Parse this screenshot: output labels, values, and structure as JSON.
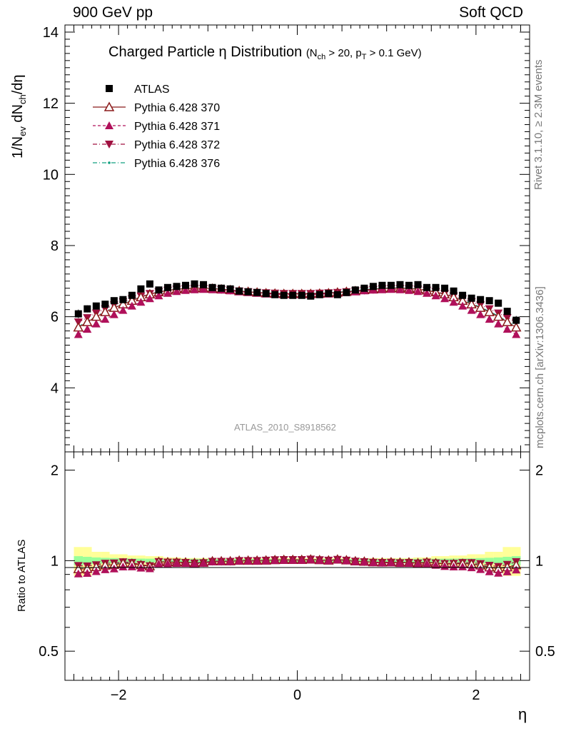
{
  "header": {
    "left": "900 GeV pp",
    "right": "Soft QCD"
  },
  "side_labels": {
    "rivet": "Rivet 3.1.10, ≥ 2.3M events",
    "mcplots": "mcplots.cern.ch [arXiv:1306.3436]"
  },
  "watermark": "ATLAS_2010_S8918562",
  "colors": {
    "atlas": "#000000",
    "p370": "#8b1a1a",
    "p371": "#b0105a",
    "p372": "#a01040",
    "p376": "#10a080",
    "band_yellow": "#ffff99",
    "band_green": "#99ff99"
  },
  "chart_data": {
    "type": "scatter",
    "title": "Charged Particle η Distribution",
    "title_cuts": "(N_ch > 20, p_T > 0.1 GeV)",
    "xlabel": "η",
    "ylabel": "1/N_ev dN_ch/dη",
    "ratio_ylabel": "Ratio to ATLAS",
    "xlim": [
      -2.6,
      2.6
    ],
    "ylim": [
      2.2,
      14.2
    ],
    "ratio_ylim": [
      0.4,
      2.3
    ],
    "x_ticks": [
      "−2",
      "0",
      "2"
    ],
    "y_ticks": [
      "4",
      "6",
      "8",
      "10",
      "12",
      "14"
    ],
    "ratio_ticks": [
      "0.5",
      "1",
      "2"
    ],
    "legend_position": "top-left",
    "x": [
      -2.45,
      -2.35,
      -2.25,
      -2.15,
      -2.05,
      -1.95,
      -1.85,
      -1.75,
      -1.65,
      -1.55,
      -1.45,
      -1.35,
      -1.25,
      -1.15,
      -1.05,
      -0.95,
      -0.85,
      -0.75,
      -0.65,
      -0.55,
      -0.45,
      -0.35,
      -0.25,
      -0.15,
      -0.05,
      0.05,
      0.15,
      0.25,
      0.35,
      0.45,
      0.55,
      0.65,
      0.75,
      0.85,
      0.95,
      1.05,
      1.15,
      1.25,
      1.35,
      1.45,
      1.55,
      1.65,
      1.75,
      1.85,
      1.95,
      2.05,
      2.15,
      2.25,
      2.35,
      2.45
    ],
    "series": [
      {
        "name": "ATLAS",
        "values": [
          6.08,
          6.22,
          6.3,
          6.35,
          6.45,
          6.48,
          6.6,
          6.78,
          6.92,
          6.75,
          6.82,
          6.85,
          6.88,
          6.92,
          6.9,
          6.82,
          6.8,
          6.78,
          6.72,
          6.7,
          6.68,
          6.65,
          6.62,
          6.6,
          6.6,
          6.6,
          6.58,
          6.62,
          6.65,
          6.62,
          6.68,
          6.75,
          6.8,
          6.85,
          6.88,
          6.88,
          6.9,
          6.88,
          6.9,
          6.82,
          6.82,
          6.8,
          6.72,
          6.6,
          6.52,
          6.48,
          6.45,
          6.38,
          6.15,
          5.9
        ],
        "errors": [
          0.12,
          0.1,
          0.09,
          0.08,
          0.07,
          0.06,
          0.06,
          0.05,
          0.05,
          0.05,
          0.04,
          0.04,
          0.04,
          0.04,
          0.04,
          0.04,
          0.04,
          0.04,
          0.04,
          0.04,
          0.04,
          0.04,
          0.04,
          0.04,
          0.04,
          0.04,
          0.04,
          0.04,
          0.04,
          0.04,
          0.04,
          0.04,
          0.04,
          0.04,
          0.04,
          0.04,
          0.04,
          0.04,
          0.04,
          0.04,
          0.05,
          0.05,
          0.05,
          0.06,
          0.06,
          0.07,
          0.08,
          0.09,
          0.1,
          0.12
        ],
        "band_green": [
          0.035,
          0.03,
          0.025,
          0.022,
          0.02,
          0.018,
          0.017,
          0.016,
          0.015,
          0.015,
          0.014,
          0.014,
          0.014,
          0.014,
          0.014,
          0.014,
          0.013,
          0.013,
          0.013,
          0.013,
          0.013,
          0.013,
          0.013,
          0.013,
          0.013,
          0.013,
          0.013,
          0.013,
          0.013,
          0.013,
          0.013,
          0.013,
          0.013,
          0.014,
          0.014,
          0.014,
          0.014,
          0.014,
          0.014,
          0.014,
          0.015,
          0.015,
          0.016,
          0.017,
          0.018,
          0.02,
          0.022,
          0.025,
          0.03,
          0.035
        ],
        "band_yellow": [
          0.11,
          0.11,
          0.07,
          0.07,
          0.05,
          0.05,
          0.04,
          0.04,
          0.035,
          0.035,
          0.025,
          0.025,
          0.02,
          0.02,
          0.02,
          0.02,
          0.02,
          0.02,
          0.02,
          0.02,
          0.02,
          0.02,
          0.02,
          0.02,
          0.02,
          0.02,
          0.02,
          0.02,
          0.02,
          0.02,
          0.02,
          0.02,
          0.02,
          0.02,
          0.02,
          0.02,
          0.02,
          0.02,
          0.025,
          0.025,
          0.035,
          0.035,
          0.04,
          0.04,
          0.05,
          0.05,
          0.07,
          0.07,
          0.11,
          0.11
        ]
      },
      {
        "name": "Pythia 6.428 370",
        "values": [
          5.7,
          5.85,
          6.0,
          6.13,
          6.25,
          6.35,
          6.45,
          6.55,
          6.63,
          6.69,
          6.74,
          6.77,
          6.79,
          6.8,
          6.8,
          6.79,
          6.77,
          6.75,
          6.72,
          6.7,
          6.68,
          6.66,
          6.65,
          6.64,
          6.64,
          6.64,
          6.64,
          6.65,
          6.66,
          6.68,
          6.7,
          6.72,
          6.75,
          6.77,
          6.79,
          6.8,
          6.8,
          6.79,
          6.77,
          6.74,
          6.69,
          6.63,
          6.55,
          6.45,
          6.35,
          6.25,
          6.13,
          6.0,
          5.85,
          5.7
        ]
      },
      {
        "name": "Pythia 6.428 371",
        "values": [
          5.5,
          5.65,
          5.8,
          5.93,
          6.06,
          6.18,
          6.3,
          6.41,
          6.51,
          6.59,
          6.66,
          6.71,
          6.74,
          6.76,
          6.77,
          6.76,
          6.75,
          6.73,
          6.7,
          6.68,
          6.66,
          6.64,
          6.63,
          6.62,
          6.62,
          6.62,
          6.62,
          6.63,
          6.64,
          6.66,
          6.68,
          6.7,
          6.73,
          6.75,
          6.76,
          6.77,
          6.76,
          6.74,
          6.71,
          6.66,
          6.59,
          6.51,
          6.41,
          6.3,
          6.18,
          6.06,
          5.93,
          5.8,
          5.65,
          5.5
        ]
      },
      {
        "name": "Pythia 6.428 372",
        "values": [
          5.85,
          5.97,
          6.1,
          6.22,
          6.33,
          6.42,
          6.5,
          6.58,
          6.65,
          6.7,
          6.74,
          6.77,
          6.78,
          6.79,
          6.79,
          6.78,
          6.76,
          6.74,
          6.72,
          6.7,
          6.68,
          6.67,
          6.66,
          6.65,
          6.65,
          6.65,
          6.65,
          6.66,
          6.67,
          6.68,
          6.7,
          6.72,
          6.74,
          6.76,
          6.78,
          6.79,
          6.79,
          6.78,
          6.77,
          6.74,
          6.7,
          6.65,
          6.58,
          6.5,
          6.42,
          6.33,
          6.22,
          6.1,
          5.97,
          5.85
        ]
      },
      {
        "name": "Pythia 6.428 376",
        "values": [
          5.72,
          5.87,
          6.02,
          6.15,
          6.27,
          6.37,
          6.47,
          6.56,
          6.64,
          6.7,
          6.75,
          6.78,
          6.8,
          6.81,
          6.81,
          6.8,
          6.78,
          6.76,
          6.73,
          6.71,
          6.69,
          6.67,
          6.66,
          6.65,
          6.65,
          6.65,
          6.65,
          6.66,
          6.67,
          6.69,
          6.71,
          6.73,
          6.76,
          6.78,
          6.8,
          6.81,
          6.81,
          6.8,
          6.78,
          6.75,
          6.7,
          6.64,
          6.56,
          6.47,
          6.37,
          6.27,
          6.15,
          6.02,
          5.87,
          5.72
        ]
      }
    ]
  }
}
